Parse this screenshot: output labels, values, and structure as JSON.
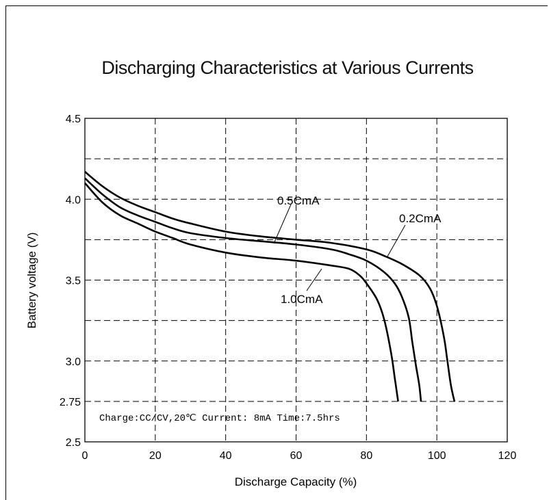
{
  "chart_data": {
    "type": "line",
    "title": "Discharging Characteristics at Various Currents",
    "xlabel": "Discharge Capacity (%)",
    "ylabel": "Battery voltage (V)",
    "xlim": [
      0,
      120
    ],
    "ylim": [
      2.5,
      4.5
    ],
    "x_ticks": [
      "0",
      "20",
      "40",
      "60",
      "80",
      "100",
      "120"
    ],
    "y_ticks": [
      {
        "value": 4.5,
        "label": "4.5"
      },
      {
        "value": 4.0,
        "label": "4.0"
      },
      {
        "value": 3.5,
        "label": "3.5"
      },
      {
        "value": 3.0,
        "label": "3.0"
      },
      {
        "value": 2.75,
        "label": "2.75"
      },
      {
        "value": 2.5,
        "label": "2.5"
      }
    ],
    "grid_y": [
      4.25,
      4.0,
      3.75,
      3.5,
      3.25,
      3.0,
      2.75
    ],
    "grid_x": [
      20,
      40,
      60,
      80,
      100
    ],
    "grid": true,
    "annotation": "Charge:CC/CV,20℃ Current: 8mA  Time:7.5hrs",
    "series": [
      {
        "name": "0.2CmA",
        "points": [
          [
            0,
            4.17
          ],
          [
            5,
            4.08
          ],
          [
            10,
            4.01
          ],
          [
            15,
            3.96
          ],
          [
            20,
            3.92
          ],
          [
            25,
            3.88
          ],
          [
            30,
            3.85
          ],
          [
            40,
            3.8
          ],
          [
            50,
            3.77
          ],
          [
            60,
            3.75
          ],
          [
            70,
            3.73
          ],
          [
            80,
            3.69
          ],
          [
            85,
            3.65
          ],
          [
            90,
            3.6
          ],
          [
            95,
            3.53
          ],
          [
            98,
            3.45
          ],
          [
            100,
            3.34
          ],
          [
            102,
            3.15
          ],
          [
            103,
            3.0
          ],
          [
            104,
            2.85
          ],
          [
            105,
            2.75
          ]
        ]
      },
      {
        "name": "0.5CmA",
        "points": [
          [
            0,
            4.13
          ],
          [
            5,
            4.03
          ],
          [
            10,
            3.95
          ],
          [
            15,
            3.9
          ],
          [
            20,
            3.86
          ],
          [
            25,
            3.82
          ],
          [
            30,
            3.79
          ],
          [
            40,
            3.76
          ],
          [
            50,
            3.74
          ],
          [
            60,
            3.72
          ],
          [
            70,
            3.69
          ],
          [
            75,
            3.66
          ],
          [
            80,
            3.62
          ],
          [
            85,
            3.55
          ],
          [
            88,
            3.48
          ],
          [
            90,
            3.4
          ],
          [
            92,
            3.27
          ],
          [
            93,
            3.12
          ],
          [
            94,
            2.98
          ],
          [
            95,
            2.85
          ],
          [
            95.5,
            2.75
          ]
        ]
      },
      {
        "name": "1.0CmA",
        "points": [
          [
            0,
            4.1
          ],
          [
            5,
            3.98
          ],
          [
            10,
            3.9
          ],
          [
            15,
            3.85
          ],
          [
            20,
            3.8
          ],
          [
            25,
            3.76
          ],
          [
            30,
            3.72
          ],
          [
            40,
            3.67
          ],
          [
            50,
            3.64
          ],
          [
            60,
            3.62
          ],
          [
            70,
            3.59
          ],
          [
            75,
            3.57
          ],
          [
            78,
            3.53
          ],
          [
            80,
            3.48
          ],
          [
            83,
            3.38
          ],
          [
            85,
            3.26
          ],
          [
            87,
            3.05
          ],
          [
            88,
            2.9
          ],
          [
            89,
            2.75
          ]
        ]
      }
    ]
  }
}
